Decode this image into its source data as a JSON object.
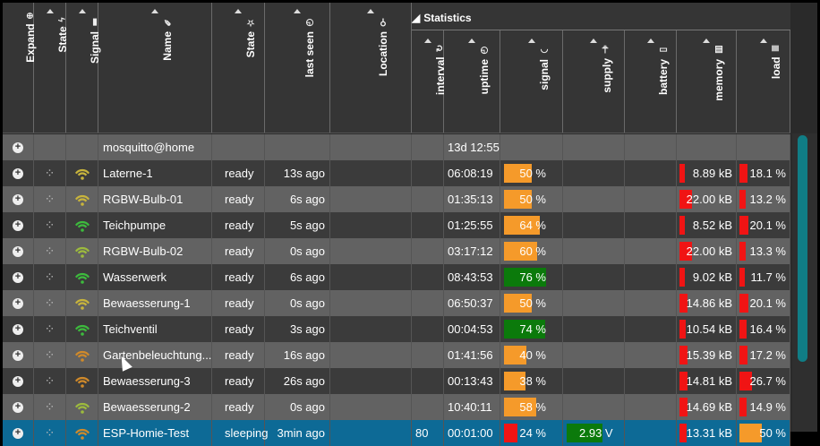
{
  "statistics_label": "Statistics",
  "columns": [
    {
      "key": "expand",
      "label": "Expand",
      "icon": "plus-circle-icon",
      "glyph": "⊕"
    },
    {
      "key": "state",
      "label": "State",
      "icon": "bolt-icon",
      "glyph": "ϟ"
    },
    {
      "key": "signal",
      "label": "Signal",
      "icon": "signal-bars-icon",
      "glyph": "▮"
    },
    {
      "key": "name",
      "label": "Name",
      "icon": "pencil-icon",
      "glyph": "✎"
    },
    {
      "key": "state2",
      "label": "State",
      "icon": "star-icon",
      "glyph": "☆"
    },
    {
      "key": "last_seen",
      "label": "last seen",
      "icon": "clock-icon",
      "glyph": "◷"
    },
    {
      "key": "location",
      "label": "Location",
      "icon": "key-icon",
      "glyph": "⚲"
    },
    {
      "key": "interval",
      "label": "interval",
      "icon": "refresh-icon",
      "glyph": "↻"
    },
    {
      "key": "uptime",
      "label": "uptime",
      "icon": "clock-icon",
      "glyph": "◷"
    },
    {
      "key": "signal_pct",
      "label": "signal",
      "icon": "wifi-icon",
      "glyph": "◠"
    },
    {
      "key": "supply",
      "label": "supply",
      "icon": "plug-icon",
      "glyph": "⏚"
    },
    {
      "key": "battery",
      "label": "battery",
      "icon": "battery-icon",
      "glyph": "▭"
    },
    {
      "key": "memory",
      "label": "memory",
      "icon": "memory-icon",
      "glyph": "▤"
    },
    {
      "key": "load",
      "label": "load",
      "icon": "server-icon",
      "glyph": "≣"
    }
  ],
  "broker": {
    "name": "mosquitto@home",
    "uptime": "13d 12:55"
  },
  "devices": [
    {
      "name": "Laterne-1",
      "state": "ready",
      "last_seen": "13s ago",
      "interval": "",
      "uptime": "06:08:19",
      "signal": "50 %",
      "signal_level": 50,
      "signal_color": "#f59a2a",
      "wifi_color": "#c8b43c",
      "supply": "",
      "memory": "8.89 kB",
      "memory_level": 0.25,
      "load": "18.1 %",
      "load_level": 0.18
    },
    {
      "name": "RGBW-Bulb-01",
      "state": "ready",
      "last_seen": "6s ago",
      "interval": "",
      "uptime": "01:35:13",
      "signal": "50 %",
      "signal_level": 50,
      "signal_color": "#f59a2a",
      "wifi_color": "#c8b43c",
      "supply": "",
      "memory": "22.00 kB",
      "memory_level": 0.62,
      "load": "13.2 %",
      "load_level": 0.13
    },
    {
      "name": "Teichpumpe",
      "state": "ready",
      "last_seen": "5s ago",
      "interval": "",
      "uptime": "01:25:55",
      "signal": "64 %",
      "signal_level": 64,
      "signal_color": "#f59a2a",
      "wifi_color": "#3dbb3d",
      "supply": "",
      "memory": "8.52 kB",
      "memory_level": 0.25,
      "load": "20.1 %",
      "load_level": 0.2
    },
    {
      "name": "RGBW-Bulb-02",
      "state": "ready",
      "last_seen": "0s ago",
      "interval": "",
      "uptime": "03:17:12",
      "signal": "60 %",
      "signal_level": 60,
      "signal_color": "#f59a2a",
      "wifi_color": "#9dbb3d",
      "supply": "",
      "memory": "22.00 kB",
      "memory_level": 0.62,
      "load": "13.3 %",
      "load_level": 0.13
    },
    {
      "name": "Wasserwerk",
      "state": "ready",
      "last_seen": "6s ago",
      "interval": "",
      "uptime": "08:43:53",
      "signal": "76 %",
      "signal_level": 76,
      "signal_color": "#0b7a0b",
      "wifi_color": "#3dbb3d",
      "supply": "",
      "memory": "9.02 kB",
      "memory_level": 0.25,
      "load": "11.7 %",
      "load_level": 0.12
    },
    {
      "name": "Bewaesserung-1",
      "state": "ready",
      "last_seen": "0s ago",
      "interval": "",
      "uptime": "06:50:37",
      "signal": "50 %",
      "signal_level": 50,
      "signal_color": "#f59a2a",
      "wifi_color": "#c8b43c",
      "supply": "",
      "memory": "14.86 kB",
      "memory_level": 0.42,
      "load": "20.1 %",
      "load_level": 0.2
    },
    {
      "name": "Teichventil",
      "state": "ready",
      "last_seen": "3s ago",
      "interval": "",
      "uptime": "00:04:53",
      "signal": "74 %",
      "signal_level": 74,
      "signal_color": "#0b7a0b",
      "wifi_color": "#3dbb3d",
      "supply": "",
      "memory": "10.54 kB",
      "memory_level": 0.3,
      "load": "16.4 %",
      "load_level": 0.16
    },
    {
      "name": "Gartenbeleuchtung...",
      "state": "ready",
      "last_seen": "16s ago",
      "interval": "",
      "uptime": "01:41:56",
      "signal": "40 %",
      "signal_level": 40,
      "signal_color": "#f59a2a",
      "wifi_color": "#d08a2a",
      "supply": "",
      "memory": "15.39 kB",
      "memory_level": 0.43,
      "load": "17.2 %",
      "load_level": 0.17
    },
    {
      "name": "Bewaesserung-3",
      "state": "ready",
      "last_seen": "26s ago",
      "interval": "",
      "uptime": "00:13:43",
      "signal": "38 %",
      "signal_level": 38,
      "signal_color": "#f59a2a",
      "wifi_color": "#d08a2a",
      "supply": "",
      "memory": "14.81 kB",
      "memory_level": 0.42,
      "load": "26.7 %",
      "load_level": 0.27
    },
    {
      "name": "Bewaesserung-2",
      "state": "ready",
      "last_seen": "0s ago",
      "interval": "",
      "uptime": "10:40:11",
      "signal": "58 %",
      "signal_level": 58,
      "signal_color": "#f59a2a",
      "wifi_color": "#9dbb3d",
      "supply": "",
      "memory": "14.69 kB",
      "memory_level": 0.42,
      "load": "14.9 %",
      "load_level": 0.15
    },
    {
      "name": "ESP-Homie-Test",
      "state": "sleeping",
      "last_seen": "3min ago",
      "interval": "80",
      "uptime": "00:01:00",
      "signal": "24 %",
      "signal_level": 24,
      "signal_color": "#f01414",
      "wifi_color": "#d08a2a",
      "supply": "2.93 V",
      "memory": "13.31 kB",
      "memory_level": 0.38,
      "load": "50 %",
      "load_level": 0.5,
      "selected": true
    }
  ]
}
